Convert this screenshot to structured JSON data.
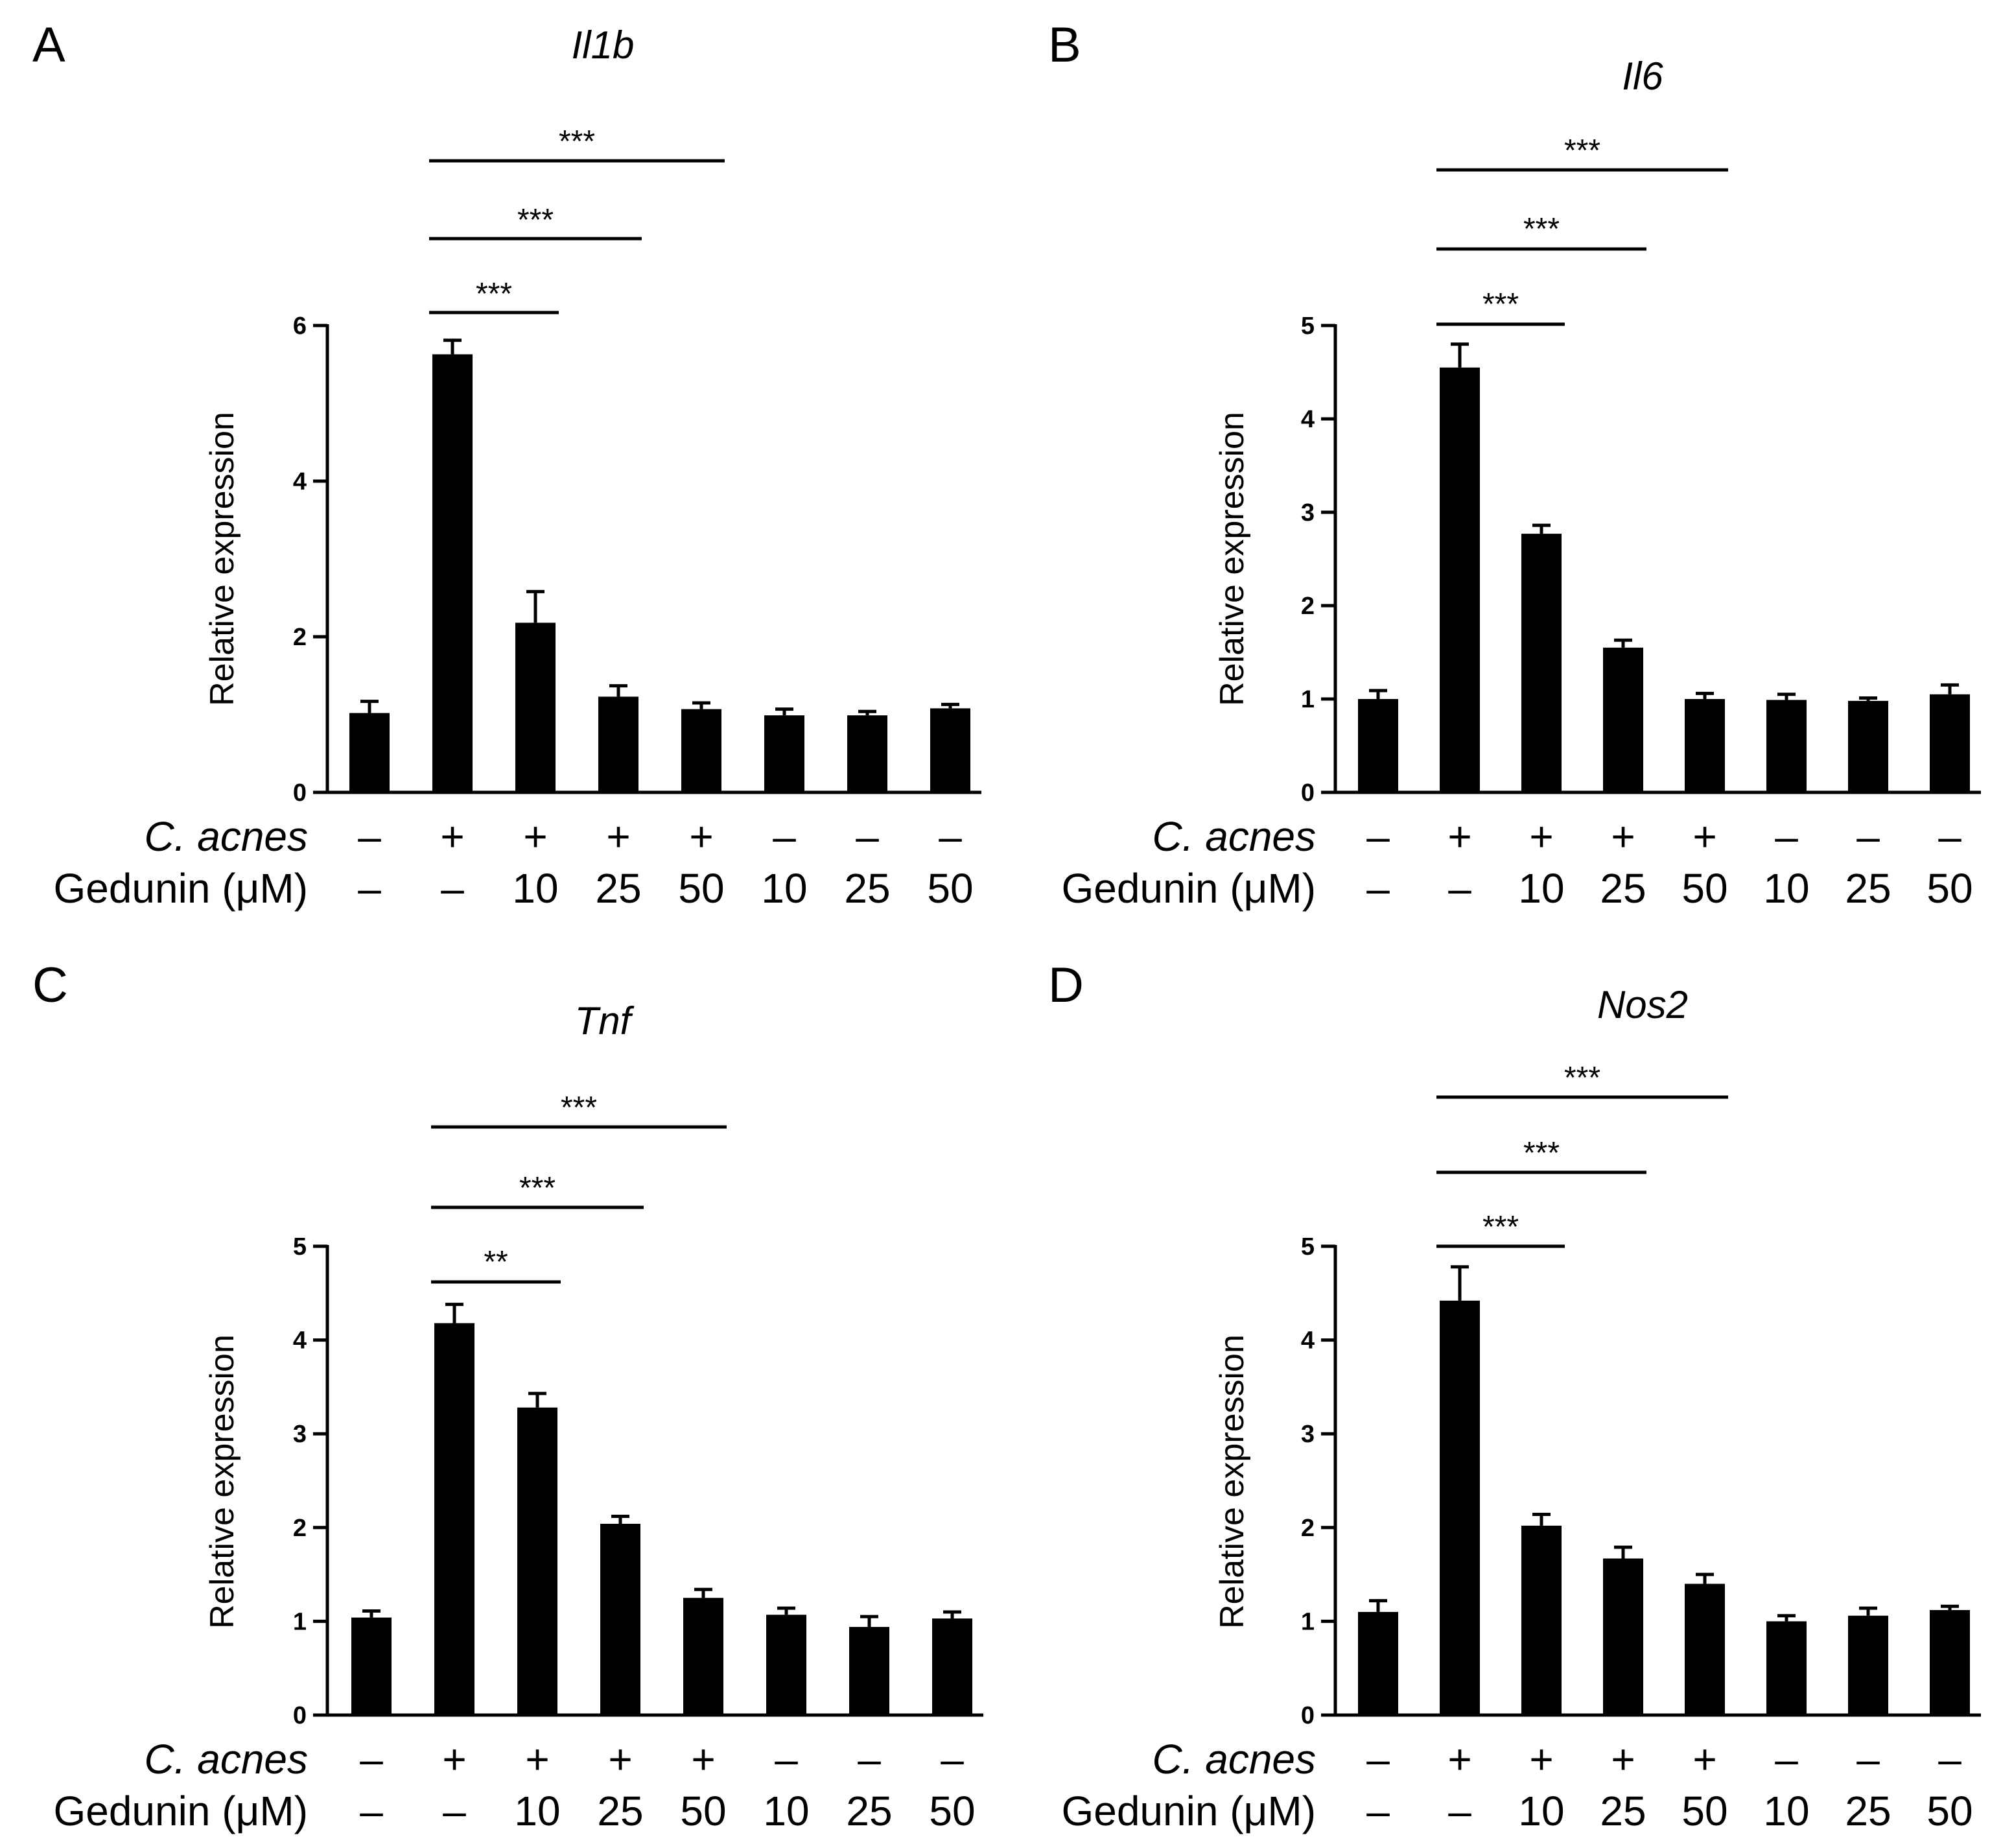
{
  "chart_data": [
    {
      "type": "bar",
      "panel": "A",
      "title": "Il1b",
      "ylabel": "Relative expression",
      "ylim": [
        0,
        6
      ],
      "yticks": [
        0,
        2,
        4,
        6
      ],
      "values": [
        1.02,
        5.63,
        2.18,
        1.23,
        1.07,
        0.99,
        0.99,
        1.08
      ],
      "errors": [
        0.15,
        0.18,
        0.4,
        0.14,
        0.08,
        0.08,
        0.05,
        0.05
      ],
      "treatment_rows": [
        {
          "label": "C. acnes",
          "values": [
            "–",
            "+",
            "+",
            "+",
            "+",
            "–",
            "–",
            "–"
          ]
        },
        {
          "label": "Gedunin (μM)",
          "values": [
            "–",
            "–",
            "10",
            "25",
            "50",
            "10",
            "25",
            "50"
          ]
        }
      ],
      "significance": [
        {
          "from": 1,
          "to": 2,
          "label": "***"
        },
        {
          "from": 1,
          "to": 3,
          "label": "***"
        },
        {
          "from": 1,
          "to": 4,
          "label": "***"
        }
      ]
    },
    {
      "type": "bar",
      "panel": "B",
      "title": "Il6",
      "ylabel": "Relative expression",
      "ylim": [
        0,
        5
      ],
      "yticks": [
        0,
        1,
        2,
        3,
        4,
        5
      ],
      "values": [
        1.0,
        4.55,
        2.77,
        1.55,
        1.0,
        0.99,
        0.98,
        1.05
      ],
      "errors": [
        0.09,
        0.25,
        0.09,
        0.08,
        0.06,
        0.06,
        0.03,
        0.1
      ],
      "treatment_rows": [
        {
          "label": "C. acnes",
          "values": [
            "–",
            "+",
            "+",
            "+",
            "+",
            "–",
            "–",
            "–"
          ]
        },
        {
          "label": "Gedunin (μM)",
          "values": [
            "–",
            "–",
            "10",
            "25",
            "50",
            "10",
            "25",
            "50"
          ]
        }
      ],
      "significance": [
        {
          "from": 1,
          "to": 2,
          "label": "***"
        },
        {
          "from": 1,
          "to": 3,
          "label": "***"
        },
        {
          "from": 1,
          "to": 4,
          "label": "***"
        }
      ]
    },
    {
      "type": "bar",
      "panel": "C",
      "title": "Tnf",
      "ylabel": "Relative expression",
      "ylim": [
        0,
        5
      ],
      "yticks": [
        0,
        1,
        2,
        3,
        4,
        5
      ],
      "values": [
        1.04,
        4.18,
        3.28,
        2.04,
        1.25,
        1.07,
        0.94,
        1.03
      ],
      "errors": [
        0.07,
        0.2,
        0.15,
        0.08,
        0.09,
        0.07,
        0.11,
        0.07
      ],
      "treatment_rows": [
        {
          "label": "C. acnes",
          "values": [
            "–",
            "+",
            "+",
            "+",
            "+",
            "–",
            "–",
            "–"
          ]
        },
        {
          "label": "Gedunin (μM)",
          "values": [
            "–",
            "–",
            "10",
            "25",
            "50",
            "10",
            "25",
            "50"
          ]
        }
      ],
      "significance": [
        {
          "from": 1,
          "to": 2,
          "label": "**"
        },
        {
          "from": 1,
          "to": 3,
          "label": "***"
        },
        {
          "from": 1,
          "to": 4,
          "label": "***"
        }
      ]
    },
    {
      "type": "bar",
      "panel": "D",
      "title": "Nos2",
      "ylabel": "Relative expression",
      "ylim": [
        0,
        5
      ],
      "yticks": [
        0,
        1,
        2,
        3,
        4,
        5
      ],
      "values": [
        1.1,
        4.42,
        2.02,
        1.67,
        1.4,
        1.0,
        1.06,
        1.12
      ],
      "errors": [
        0.12,
        0.36,
        0.12,
        0.12,
        0.1,
        0.06,
        0.08,
        0.04
      ],
      "treatment_rows": [
        {
          "label": "C. acnes",
          "values": [
            "–",
            "+",
            "+",
            "+",
            "+",
            "–",
            "–",
            "–"
          ]
        },
        {
          "label": "Gedunin (μM)",
          "values": [
            "–",
            "–",
            "10",
            "25",
            "50",
            "10",
            "25",
            "50"
          ]
        }
      ],
      "significance": [
        {
          "from": 1,
          "to": 2,
          "label": "***"
        },
        {
          "from": 1,
          "to": 3,
          "label": "***"
        },
        {
          "from": 1,
          "to": 4,
          "label": "***"
        }
      ]
    }
  ]
}
